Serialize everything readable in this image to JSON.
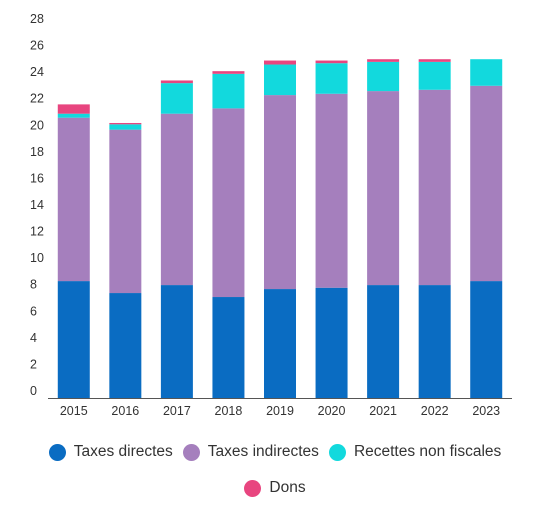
{
  "chart_data": {
    "type": "bar",
    "stacked": true,
    "categories": [
      "2015",
      "2016",
      "2017",
      "2018",
      "2019",
      "2020",
      "2021",
      "2022",
      "2023"
    ],
    "series": [
      {
        "name": "Taxes directes",
        "color": "#0a6cc2",
        "values": [
          8.8,
          7.9,
          8.5,
          7.6,
          8.2,
          8.3,
          8.5,
          8.5,
          8.8
        ]
      },
      {
        "name": "Taxes indirectes",
        "color": "#a57fbd",
        "values": [
          12.3,
          12.3,
          12.9,
          14.2,
          14.6,
          14.6,
          14.6,
          14.7,
          14.7
        ]
      },
      {
        "name": "Recettes non fiscales",
        "color": "#12d9dd",
        "values": [
          0.3,
          0.4,
          2.3,
          2.6,
          2.3,
          2.3,
          2.2,
          2.1,
          2.0
        ]
      },
      {
        "name": "Dons",
        "color": "#e8457f",
        "values": [
          0.7,
          0.1,
          0.2,
          0.2,
          0.3,
          0.2,
          0.2,
          0.2,
          0.0
        ]
      }
    ],
    "ylim": [
      0,
      28
    ],
    "yticks": [
      0,
      2,
      4,
      6,
      8,
      10,
      12,
      14,
      16,
      18,
      20,
      22,
      24,
      26,
      28
    ],
    "grid": false,
    "legend_position": "bottom"
  }
}
